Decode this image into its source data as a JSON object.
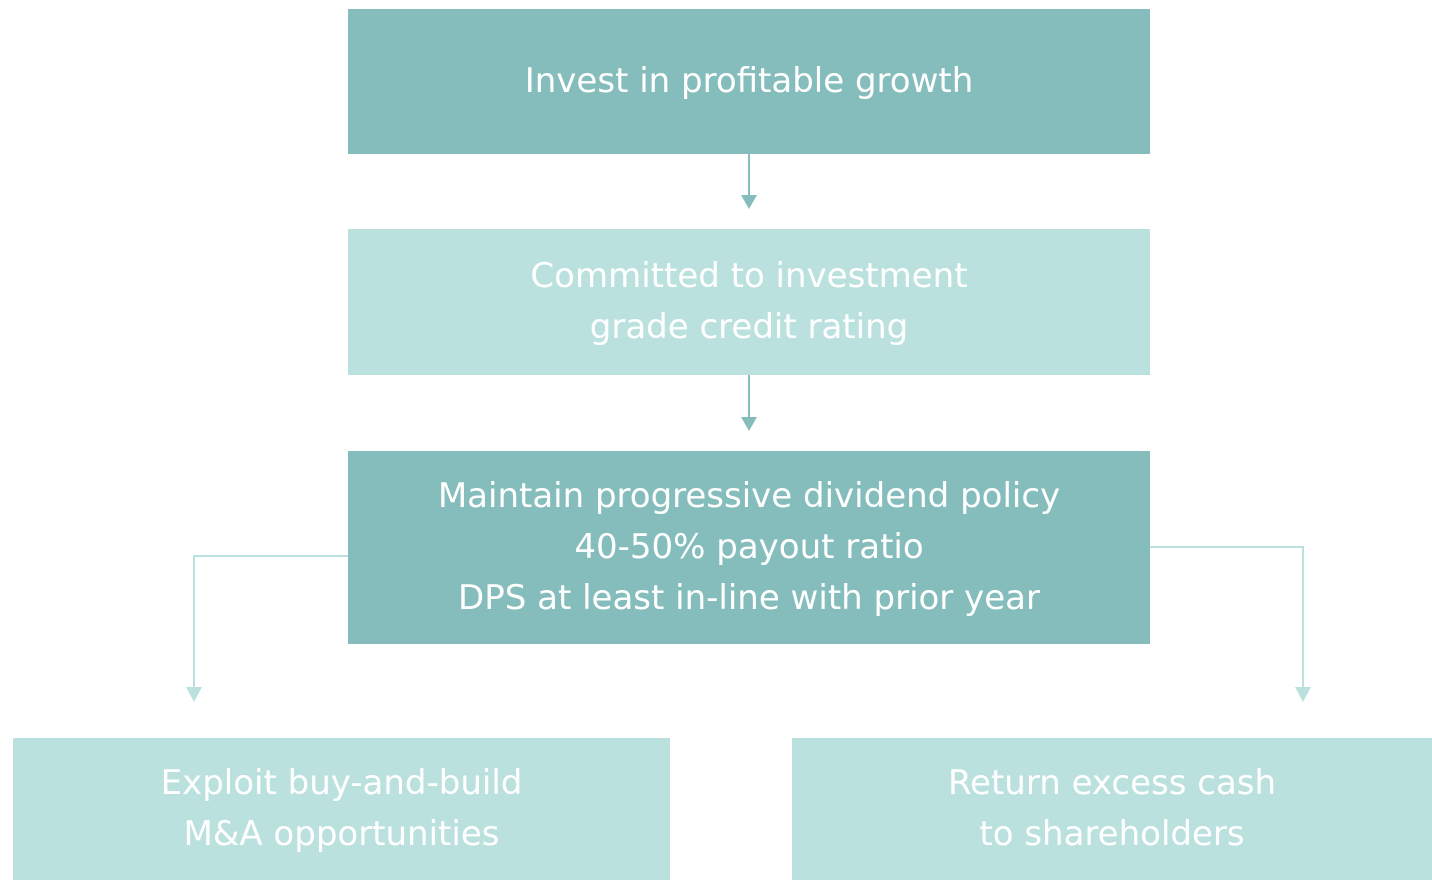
{
  "nodes": [
    {
      "lines": [
        "Invest in profitable growth"
      ]
    },
    {
      "lines": [
        "Committed to investment",
        "grade credit rating"
      ]
    },
    {
      "lines": [
        "Maintain progressive dividend policy",
        "40-50% payout ratio",
        "DPS at least in-line with prior year"
      ]
    },
    {
      "lines": [
        "Exploit buy-and-build",
        "M&A opportunities"
      ]
    },
    {
      "lines": [
        "Return excess cash",
        "to shareholders"
      ]
    }
  ]
}
